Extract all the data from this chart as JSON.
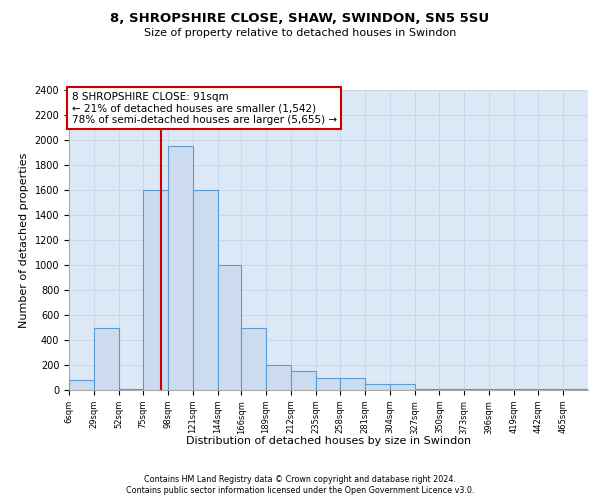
{
  "title1": "8, SHROPSHIRE CLOSE, SHAW, SWINDON, SN5 5SU",
  "title2": "Size of property relative to detached houses in Swindon",
  "xlabel": "Distribution of detached houses by size in Swindon",
  "ylabel": "Number of detached properties",
  "footer1": "Contains HM Land Registry data © Crown copyright and database right 2024.",
  "footer2": "Contains public sector information licensed under the Open Government Licence v3.0.",
  "annotation_line1": "8 SHROPSHIRE CLOSE: 91sqm",
  "annotation_line2": "← 21% of detached houses are smaller (1,542)",
  "annotation_line3": "78% of semi-detached houses are larger (5,655) →",
  "property_size": 91,
  "bar_edge_color": "#5b9bd5",
  "bar_face_color": "#ccdcee",
  "grid_color": "#c8d8e8",
  "annotation_box_color": "#cc0000",
  "vline_color": "#cc0000",
  "background_color": "#dce8f5",
  "categories": [
    "6sqm",
    "29sqm",
    "52sqm",
    "75sqm",
    "98sqm",
    "121sqm",
    "144sqm",
    "166sqm",
    "189sqm",
    "212sqm",
    "235sqm",
    "258sqm",
    "281sqm",
    "304sqm",
    "327sqm",
    "350sqm",
    "373sqm",
    "396sqm",
    "419sqm",
    "442sqm",
    "465sqm"
  ],
  "bin_left": [
    6,
    29,
    52,
    75,
    98,
    121,
    144,
    166,
    189,
    212,
    235,
    258,
    281,
    304,
    327,
    350,
    373,
    396,
    419,
    442,
    465
  ],
  "bin_right": [
    29,
    52,
    75,
    98,
    121,
    144,
    166,
    189,
    212,
    235,
    258,
    281,
    304,
    327,
    350,
    373,
    396,
    419,
    442,
    465,
    488
  ],
  "values": [
    80,
    500,
    5,
    1600,
    1950,
    1600,
    1000,
    500,
    200,
    150,
    100,
    100,
    50,
    50,
    5,
    5,
    5,
    5,
    5,
    5,
    5
  ],
  "ylim": [
    0,
    2400
  ],
  "yticks": [
    0,
    200,
    400,
    600,
    800,
    1000,
    1200,
    1400,
    1600,
    1800,
    2000,
    2200,
    2400
  ]
}
